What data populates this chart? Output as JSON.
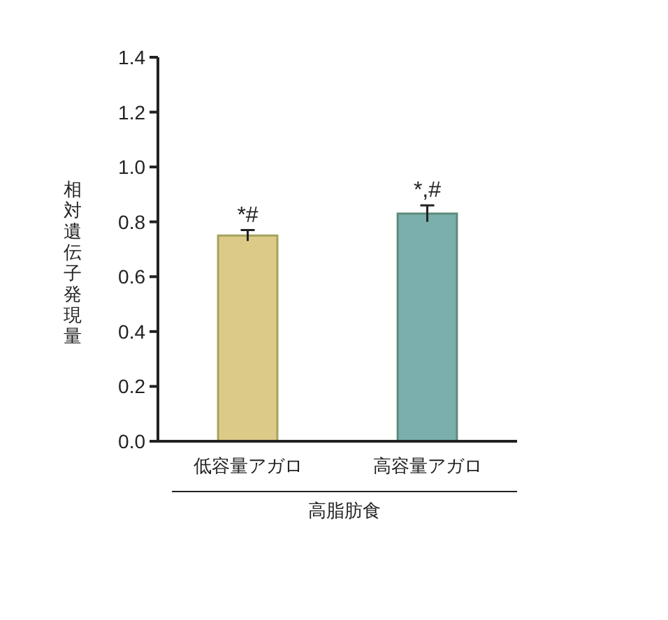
{
  "chart_data": {
    "type": "bar",
    "ylabel": "相対遺伝子発現量",
    "xlabel": "高脂肪食",
    "categories": [
      "低容量アガロ",
      "高容量アガロ"
    ],
    "values": [
      0.75,
      0.83
    ],
    "errors": [
      0.02,
      0.03
    ],
    "colors": [
      "#dccb88",
      "#7aafae"
    ],
    "ylim": [
      0,
      1.4
    ],
    "yticks": [
      {
        "value": 0,
        "label": "0.0"
      },
      {
        "value": 0.2,
        "label": "0.2"
      },
      {
        "value": 0.4,
        "label": "0.4"
      },
      {
        "value": 0.6,
        "label": "0.6"
      },
      {
        "value": 0.8,
        "label": "0.8"
      },
      {
        "value": 1.0,
        "label": "1.0"
      },
      {
        "value": 1.2,
        "label": "1.2"
      },
      {
        "value": 1.4,
        "label": "1.4"
      }
    ],
    "annotations": [
      {
        "text": "*#",
        "x": "低容量アガロ",
        "y": 0.77
      },
      {
        "text": "*,#",
        "x": "高容量アガロ",
        "y": 0.86
      }
    ],
    "grid": false
  }
}
